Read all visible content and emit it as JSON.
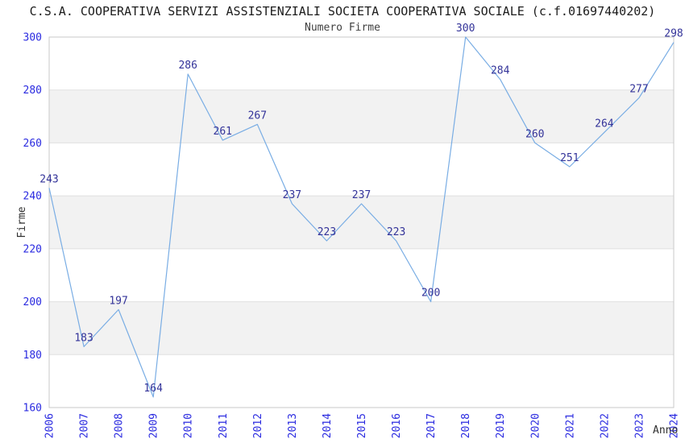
{
  "chart_data": {
    "type": "line",
    "title": "C.S.A. COOPERATIVA SERVIZI ASSISTENZIALI SOCIETA COOPERATIVA SOCIALE (c.f.01697440202)",
    "subtitle": "Numero Firme",
    "xlabel": "Anno",
    "ylabel": "Firme",
    "categories": [
      "2006",
      "2007",
      "2008",
      "2009",
      "2010",
      "2011",
      "2012",
      "2013",
      "2014",
      "2015",
      "2016",
      "2017",
      "2018",
      "2019",
      "2020",
      "2021",
      "2022",
      "2023",
      "2024"
    ],
    "values": [
      243,
      183,
      197,
      164,
      286,
      261,
      267,
      237,
      223,
      237,
      223,
      200,
      300,
      284,
      260,
      251,
      264,
      277,
      298
    ],
    "ylim": [
      160,
      300
    ],
    "yticks": [
      160,
      180,
      200,
      220,
      240,
      260,
      280,
      300
    ],
    "grid": "horizontal alternating bands every 20 units",
    "legend": "none",
    "point_labels_shown": true,
    "colors": {
      "line": "#79ade4",
      "tick_label": "#2b2be0",
      "data_label": "#333399",
      "band_fill": "#f2f2f2",
      "gridline": "#e0e0e0",
      "plot_border": "#c9c9c9",
      "title": "#1c1c1c",
      "subtitle": "#3f3f3f",
      "axis_label": "#303030",
      "background": "#ffffff"
    }
  }
}
